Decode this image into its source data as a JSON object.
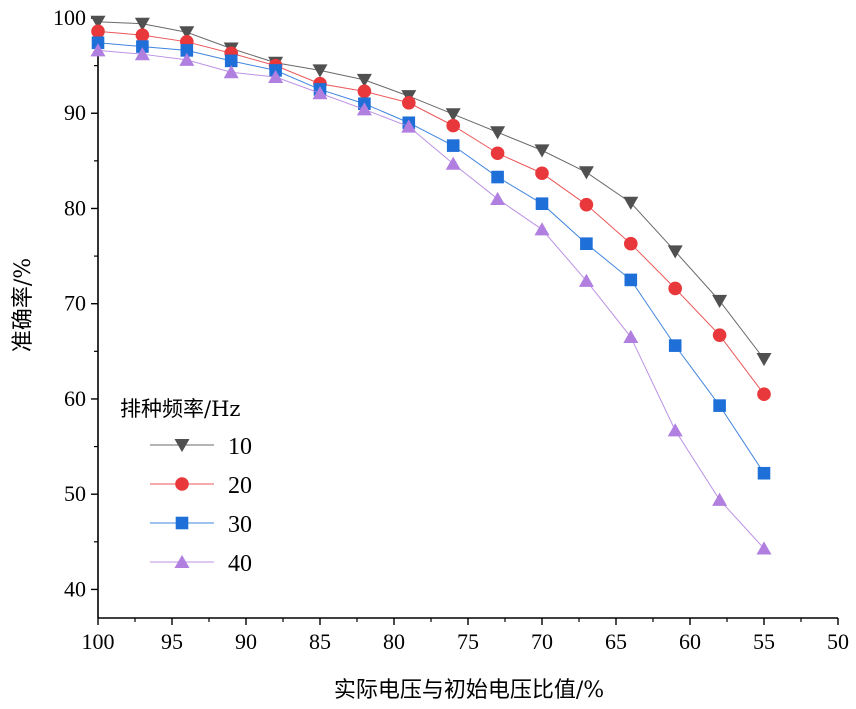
{
  "chart_data": {
    "type": "line",
    "xlabel": "实际电压与初始电压比值/%",
    "ylabel": "准确率/%",
    "x": [
      100,
      97,
      94,
      91,
      88,
      85,
      82,
      79,
      76,
      73,
      70,
      67,
      64,
      61,
      58,
      55
    ],
    "xlim": [
      100,
      50
    ],
    "x_reversed": true,
    "ylim": [
      37,
      100
    ],
    "x_ticks": [
      100,
      95,
      90,
      85,
      80,
      75,
      70,
      65,
      60,
      55,
      50
    ],
    "y_ticks": [
      40,
      50,
      60,
      70,
      80,
      90,
      100
    ],
    "grid": false,
    "legend_position": "center-left",
    "legend_title": "排种频率/Hz",
    "series": [
      {
        "name": "10",
        "color": "#505050",
        "marker": "triangle-down",
        "values": [
          99.6,
          99.4,
          98.5,
          96.8,
          95.3,
          94.5,
          93.5,
          91.8,
          89.9,
          88.0,
          86.1,
          83.8,
          80.6,
          75.5,
          70.3,
          64.2
        ]
      },
      {
        "name": "20",
        "color": "#e8383b",
        "marker": "circle",
        "values": [
          98.6,
          98.2,
          97.5,
          96.3,
          95.0,
          93.1,
          92.3,
          91.1,
          88.7,
          85.8,
          83.7,
          80.4,
          76.3,
          71.6,
          66.7,
          60.5
        ]
      },
      {
        "name": "30",
        "color": "#1f6fd8",
        "marker": "square",
        "values": [
          97.4,
          97.0,
          96.6,
          95.5,
          94.5,
          92.5,
          91.0,
          89.0,
          86.6,
          83.3,
          80.5,
          76.3,
          72.5,
          65.6,
          59.3,
          52.2
        ]
      },
      {
        "name": "40",
        "color": "#b07fe0",
        "marker": "triangle-up",
        "values": [
          96.6,
          96.2,
          95.6,
          94.3,
          93.8,
          92.1,
          90.4,
          88.6,
          84.7,
          81.0,
          77.8,
          72.4,
          66.5,
          56.7,
          49.4,
          44.3
        ]
      }
    ]
  }
}
